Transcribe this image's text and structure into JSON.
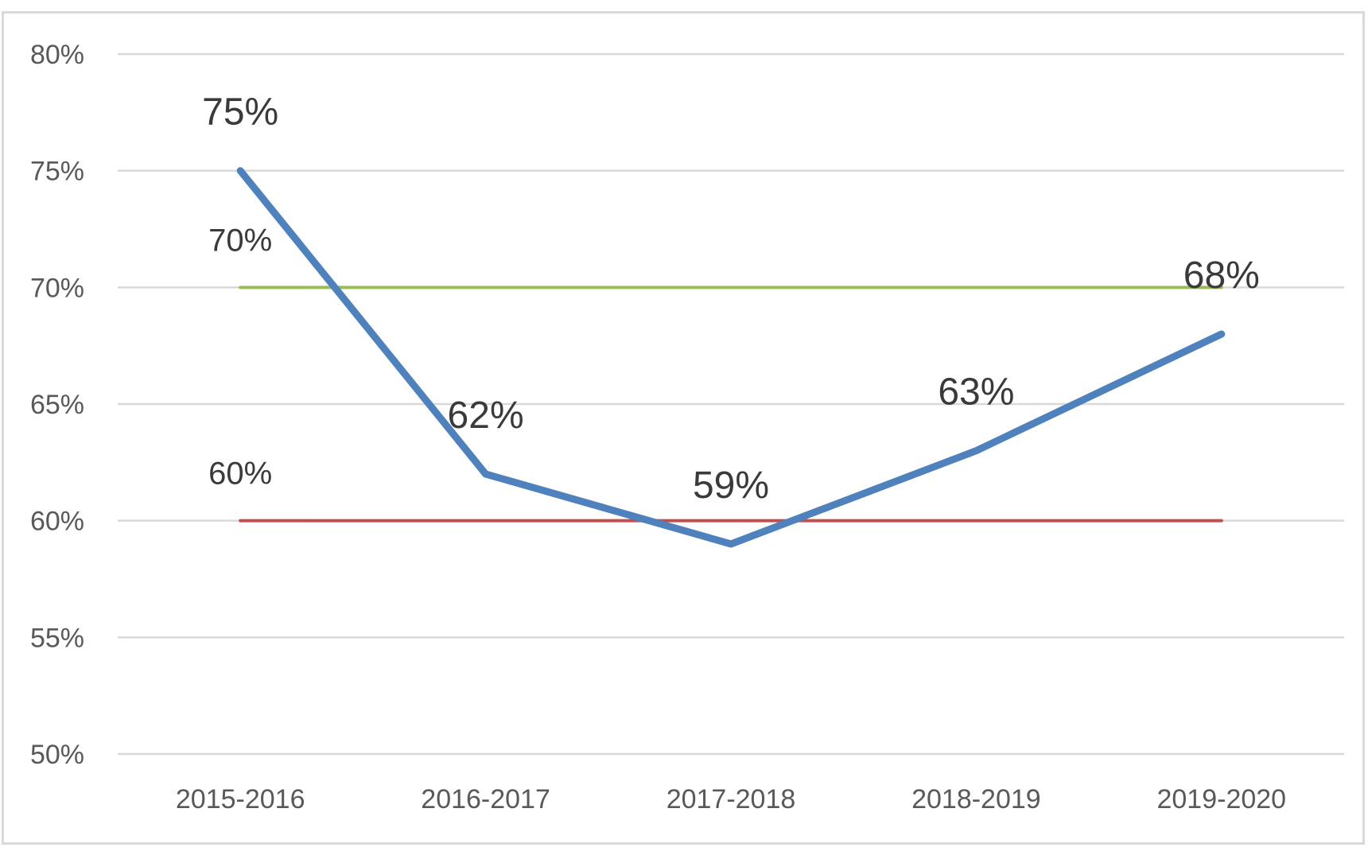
{
  "chart_data": {
    "type": "line",
    "title": "",
    "xlabel": "",
    "ylabel": "",
    "categories": [
      "2015-2016",
      "2016-2017",
      "2017-2018",
      "2018-2019",
      "2019-2020"
    ],
    "ylim": [
      0.5,
      0.8
    ],
    "yticks": [
      {
        "value": 0.8,
        "label": "80%"
      },
      {
        "value": 0.75,
        "label": "75%"
      },
      {
        "value": 0.7,
        "label": "70%"
      },
      {
        "value": 0.65,
        "label": "65%"
      },
      {
        "value": 0.6,
        "label": "60%"
      },
      {
        "value": 0.55,
        "label": "55%"
      },
      {
        "value": 0.5,
        "label": "50%"
      }
    ],
    "grid": true,
    "legend": "none",
    "series": [
      {
        "values": [
          0.75,
          0.62,
          0.59,
          0.63,
          0.68
        ],
        "color": "#4f81bd",
        "data_labels": [
          "75%",
          "62%",
          "59%",
          "63%",
          "68%"
        ]
      },
      {
        "values": [
          0.7,
          0.7,
          0.7,
          0.7,
          0.7
        ],
        "color": "#9bbb59",
        "first_label": "70%"
      },
      {
        "values": [
          0.6,
          0.6,
          0.6,
          0.6,
          0.6
        ],
        "color": "#c0504d",
        "first_label": "60%"
      }
    ]
  }
}
